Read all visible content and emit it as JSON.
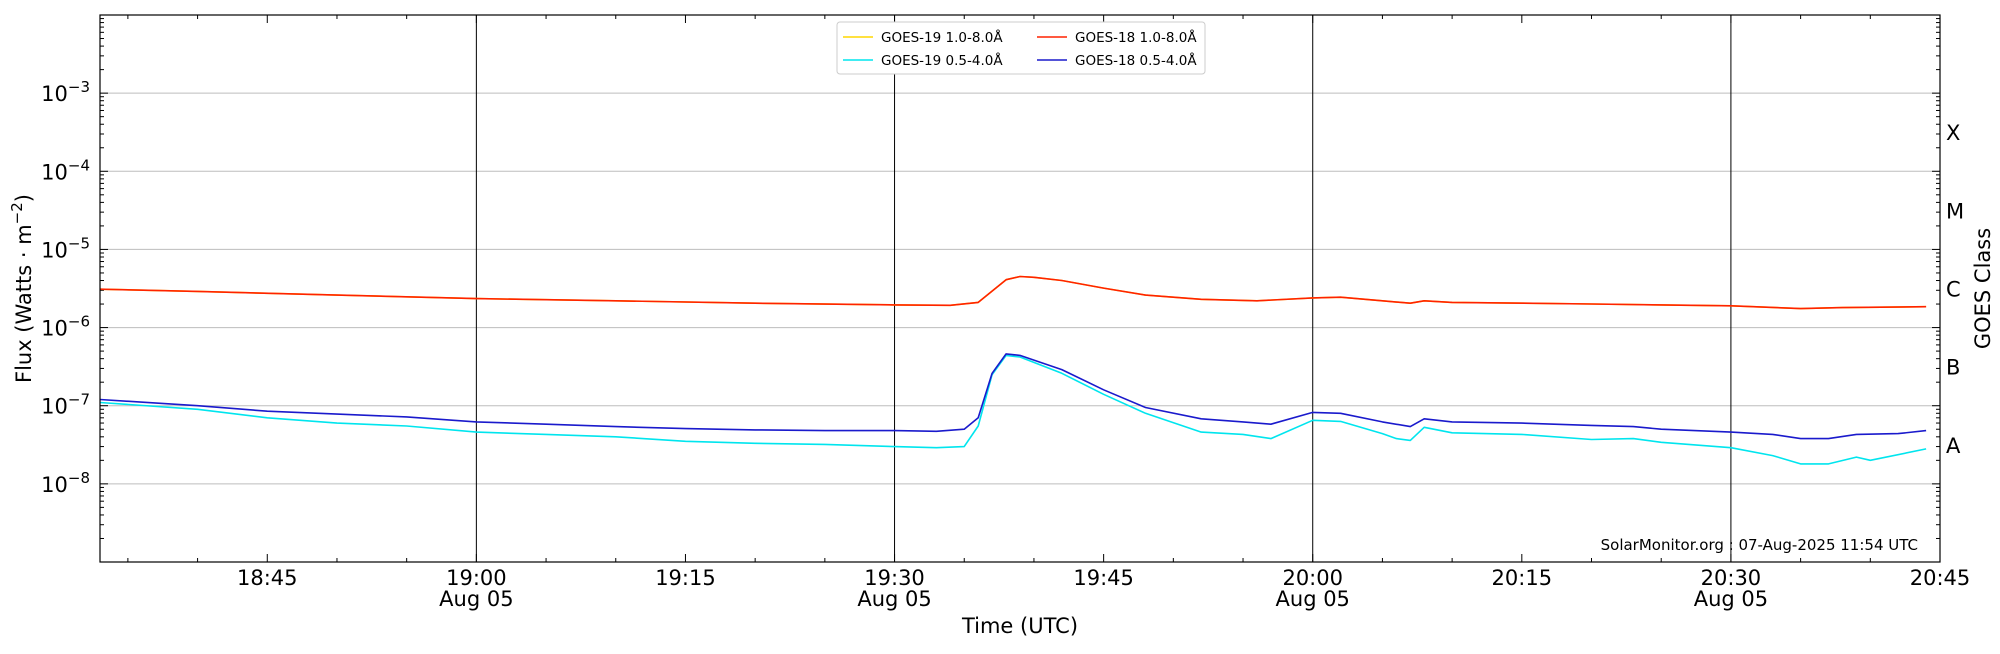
{
  "chart_data": {
    "type": "line",
    "xlabel": "Time (UTC)",
    "ylabel": "Flux (Watts · m",
    "ylabel_sup": "−2",
    "ylabel_close": ")",
    "y2label": "GOES Class",
    "yscale": "log",
    "xlim": [
      "18:33",
      "20:45"
    ],
    "ylim": [
      1e-09,
      0.01
    ],
    "grid": "horizontal lines at each decade",
    "legend_position": "top-center",
    "credit": "SolarMonitor.org : 07-Aug-2025 11:54 UTC",
    "x_ticks": [
      {
        "t": "18:45",
        "label": "18:45",
        "sub": ""
      },
      {
        "t": "19:00",
        "label": "19:00",
        "sub": "Aug 05",
        "vline": true
      },
      {
        "t": "19:15",
        "label": "19:15",
        "sub": ""
      },
      {
        "t": "19:30",
        "label": "19:30",
        "sub": "Aug 05",
        "vline": true
      },
      {
        "t": "19:45",
        "label": "19:45",
        "sub": ""
      },
      {
        "t": "20:00",
        "label": "20:00",
        "sub": "Aug 05",
        "vline": true
      },
      {
        "t": "20:15",
        "label": "20:15",
        "sub": ""
      },
      {
        "t": "20:30",
        "label": "20:30",
        "sub": "Aug 05",
        "vline": true
      },
      {
        "t": "20:45",
        "label": "20:45",
        "sub": ""
      }
    ],
    "y_ticks": [
      {
        "exp": -8,
        "label": "10",
        "sup": "−8"
      },
      {
        "exp": -7,
        "label": "10",
        "sup": "−7"
      },
      {
        "exp": -6,
        "label": "10",
        "sup": "−6"
      },
      {
        "exp": -5,
        "label": "10",
        "sup": "−5"
      },
      {
        "exp": -4,
        "label": "10",
        "sup": "−4"
      },
      {
        "exp": -3,
        "label": "10",
        "sup": "−3"
      }
    ],
    "goes_classes": [
      {
        "label": "A",
        "exp": -7.5
      },
      {
        "label": "B",
        "exp": -6.5
      },
      {
        "label": "C",
        "exp": -5.5
      },
      {
        "label": "M",
        "exp": -4.5
      },
      {
        "label": "X",
        "exp": -3.5
      }
    ],
    "series": [
      {
        "name": "GOES-19 1.0-8.0Å",
        "color": "#ffd700",
        "width": 1.6,
        "points": [
          [
            "18:33",
            3.1e-06
          ],
          [
            "18:40",
            2.9e-06
          ],
          [
            "18:50",
            2.6e-06
          ],
          [
            "19:00",
            2.35e-06
          ],
          [
            "19:10",
            2.2e-06
          ],
          [
            "19:20",
            2.05e-06
          ],
          [
            "19:30",
            1.95e-06
          ],
          [
            "19:34",
            1.93e-06
          ],
          [
            "19:36",
            2.1e-06
          ],
          [
            "19:38",
            4.1e-06
          ],
          [
            "19:39",
            4.5e-06
          ],
          [
            "19:40",
            4.4e-06
          ],
          [
            "19:42",
            4e-06
          ],
          [
            "19:45",
            3.2e-06
          ],
          [
            "19:48",
            2.6e-06
          ],
          [
            "19:52",
            2.3e-06
          ],
          [
            "19:56",
            2.2e-06
          ],
          [
            "20:00",
            2.4e-06
          ],
          [
            "20:02",
            2.45e-06
          ],
          [
            "20:05",
            2.2e-06
          ],
          [
            "20:07",
            2.05e-06
          ],
          [
            "20:08",
            2.2e-06
          ],
          [
            "20:10",
            2.1e-06
          ],
          [
            "20:20",
            2e-06
          ],
          [
            "20:30",
            1.9e-06
          ],
          [
            "20:35",
            1.75e-06
          ],
          [
            "20:38",
            1.8e-06
          ],
          [
            "20:44",
            1.85e-06
          ]
        ]
      },
      {
        "name": "GOES-18 1.0-8.0Å",
        "color": "#ff2200",
        "width": 1.6,
        "points": [
          [
            "18:33",
            3.1e-06
          ],
          [
            "18:40",
            2.9e-06
          ],
          [
            "18:50",
            2.6e-06
          ],
          [
            "19:00",
            2.35e-06
          ],
          [
            "19:10",
            2.2e-06
          ],
          [
            "19:20",
            2.05e-06
          ],
          [
            "19:30",
            1.95e-06
          ],
          [
            "19:34",
            1.93e-06
          ],
          [
            "19:36",
            2.1e-06
          ],
          [
            "19:38",
            4.1e-06
          ],
          [
            "19:39",
            4.5e-06
          ],
          [
            "19:40",
            4.4e-06
          ],
          [
            "19:42",
            4e-06
          ],
          [
            "19:45",
            3.2e-06
          ],
          [
            "19:48",
            2.6e-06
          ],
          [
            "19:52",
            2.3e-06
          ],
          [
            "19:56",
            2.2e-06
          ],
          [
            "20:00",
            2.4e-06
          ],
          [
            "20:02",
            2.45e-06
          ],
          [
            "20:05",
            2.2e-06
          ],
          [
            "20:07",
            2.05e-06
          ],
          [
            "20:08",
            2.2e-06
          ],
          [
            "20:10",
            2.1e-06
          ],
          [
            "20:20",
            2e-06
          ],
          [
            "20:30",
            1.9e-06
          ],
          [
            "20:35",
            1.75e-06
          ],
          [
            "20:38",
            1.8e-06
          ],
          [
            "20:44",
            1.85e-06
          ]
        ]
      },
      {
        "name": "GOES-19 0.5-4.0Å",
        "color": "#00e5ee",
        "width": 1.6,
        "points": [
          [
            "18:33",
            1.1e-07
          ],
          [
            "18:40",
            9e-08
          ],
          [
            "18:45",
            7e-08
          ],
          [
            "18:50",
            6e-08
          ],
          [
            "18:55",
            5.5e-08
          ],
          [
            "19:00",
            4.6e-08
          ],
          [
            "19:05",
            4.3e-08
          ],
          [
            "19:10",
            4e-08
          ],
          [
            "19:15",
            3.5e-08
          ],
          [
            "19:20",
            3.3e-08
          ],
          [
            "19:25",
            3.2e-08
          ],
          [
            "19:30",
            3e-08
          ],
          [
            "19:33",
            2.9e-08
          ],
          [
            "19:35",
            3e-08
          ],
          [
            "19:36",
            5.5e-08
          ],
          [
            "19:37",
            2.5e-07
          ],
          [
            "19:38",
            4.4e-07
          ],
          [
            "19:39",
            4.2e-07
          ],
          [
            "19:42",
            2.6e-07
          ],
          [
            "19:45",
            1.4e-07
          ],
          [
            "19:48",
            8e-08
          ],
          [
            "19:52",
            4.6e-08
          ],
          [
            "19:55",
            4.3e-08
          ],
          [
            "19:57",
            3.8e-08
          ],
          [
            "20:00",
            6.5e-08
          ],
          [
            "20:02",
            6.3e-08
          ],
          [
            "20:05",
            4.4e-08
          ],
          [
            "20:06",
            3.8e-08
          ],
          [
            "20:07",
            3.6e-08
          ],
          [
            "20:08",
            5.3e-08
          ],
          [
            "20:10",
            4.5e-08
          ],
          [
            "20:15",
            4.3e-08
          ],
          [
            "20:20",
            3.7e-08
          ],
          [
            "20:23",
            3.8e-08
          ],
          [
            "20:25",
            3.4e-08
          ],
          [
            "20:30",
            2.9e-08
          ],
          [
            "20:33",
            2.3e-08
          ],
          [
            "20:35",
            1.8e-08
          ],
          [
            "20:37",
            1.8e-08
          ],
          [
            "20:39",
            2.2e-08
          ],
          [
            "20:40",
            2e-08
          ],
          [
            "20:44",
            2.8e-08
          ]
        ]
      },
      {
        "name": "GOES-18 0.5-4.0Å",
        "color": "#1a1acc",
        "width": 1.6,
        "points": [
          [
            "18:33",
            1.2e-07
          ],
          [
            "18:40",
            1e-07
          ],
          [
            "18:45",
            8.5e-08
          ],
          [
            "18:50",
            7.8e-08
          ],
          [
            "18:55",
            7.2e-08
          ],
          [
            "19:00",
            6.2e-08
          ],
          [
            "19:05",
            5.8e-08
          ],
          [
            "19:10",
            5.4e-08
          ],
          [
            "19:15",
            5.1e-08
          ],
          [
            "19:20",
            4.9e-08
          ],
          [
            "19:25",
            4.8e-08
          ],
          [
            "19:30",
            4.8e-08
          ],
          [
            "19:33",
            4.7e-08
          ],
          [
            "19:35",
            5e-08
          ],
          [
            "19:36",
            7e-08
          ],
          [
            "19:37",
            2.6e-07
          ],
          [
            "19:38",
            4.6e-07
          ],
          [
            "19:39",
            4.4e-07
          ],
          [
            "19:42",
            2.9e-07
          ],
          [
            "19:45",
            1.6e-07
          ],
          [
            "19:48",
            9.5e-08
          ],
          [
            "19:52",
            6.8e-08
          ],
          [
            "19:55",
            6.2e-08
          ],
          [
            "19:57",
            5.8e-08
          ],
          [
            "20:00",
            8.2e-08
          ],
          [
            "20:02",
            8e-08
          ],
          [
            "20:05",
            6.2e-08
          ],
          [
            "20:07",
            5.4e-08
          ],
          [
            "20:08",
            6.8e-08
          ],
          [
            "20:10",
            6.2e-08
          ],
          [
            "20:15",
            6e-08
          ],
          [
            "20:20",
            5.6e-08
          ],
          [
            "20:23",
            5.4e-08
          ],
          [
            "20:25",
            5e-08
          ],
          [
            "20:30",
            4.6e-08
          ],
          [
            "20:33",
            4.3e-08
          ],
          [
            "20:35",
            3.8e-08
          ],
          [
            "20:37",
            3.8e-08
          ],
          [
            "20:39",
            4.3e-08
          ],
          [
            "20:42",
            4.4e-08
          ],
          [
            "20:44",
            4.8e-08
          ]
        ]
      }
    ],
    "legend_order": [
      0,
      2,
      1,
      3
    ]
  }
}
